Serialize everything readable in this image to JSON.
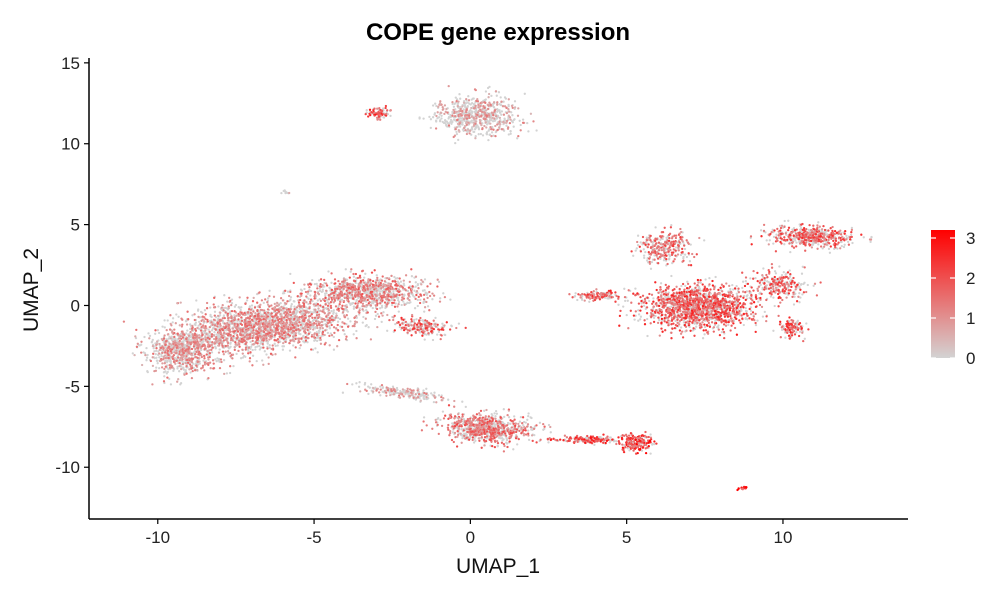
{
  "chart_data": {
    "type": "scatter",
    "title": "COPE gene expression",
    "xlabel": "UMAP_1",
    "ylabel": "UMAP_2",
    "xlim": [
      -12.2,
      14.0
    ],
    "ylim": [
      -13.2,
      15.3
    ],
    "xticks": [
      -10,
      -5,
      0,
      5,
      10
    ],
    "xtick_labels": [
      "-10",
      "-5",
      "0",
      "5",
      "10"
    ],
    "yticks": [
      -10,
      -5,
      0,
      5,
      10,
      15
    ],
    "ytick_labels": [
      "-10",
      "-5",
      "0",
      "5",
      "10",
      "15"
    ],
    "grid": false,
    "legend_position": "right",
    "color_scale": {
      "low_color": "#d3d3d3",
      "high_color": "#ff0000",
      "min": 0,
      "max": 3.2,
      "ticks": [
        0,
        1,
        2,
        3
      ],
      "tick_labels": [
        "0",
        "1",
        "2",
        "3"
      ]
    },
    "clusters": [
      {
        "id": "c-left-main",
        "center": [
          -6.6,
          -1.3
        ],
        "spread": [
          2.6,
          1.4
        ],
        "tilt": 0.32,
        "n": 2200,
        "mean_expr": 0.9
      },
      {
        "id": "c-left-upper",
        "center": [
          -3.2,
          0.8
        ],
        "spread": [
          1.6,
          0.9
        ],
        "tilt": 0.0,
        "n": 900,
        "mean_expr": 1.0
      },
      {
        "id": "c-left-far",
        "center": [
          -9.2,
          -2.8
        ],
        "spread": [
          1.0,
          1.3
        ],
        "tilt": 0.0,
        "n": 700,
        "mean_expr": 0.8
      },
      {
        "id": "c-left-tail",
        "center": [
          -1.6,
          -1.3
        ],
        "spread": [
          0.9,
          0.5
        ],
        "tilt": -0.2,
        "n": 200,
        "mean_expr": 1.3
      },
      {
        "id": "c-top",
        "center": [
          0.2,
          11.8
        ],
        "spread": [
          1.2,
          1.1
        ],
        "tilt": 0.0,
        "n": 650,
        "mean_expr": 0.7
      },
      {
        "id": "c-top-small",
        "center": [
          -2.9,
          11.9
        ],
        "spread": [
          0.35,
          0.3
        ],
        "tilt": 0.0,
        "n": 80,
        "mean_expr": 1.5
      },
      {
        "id": "c-tiny",
        "center": [
          -5.9,
          7.0
        ],
        "spread": [
          0.1,
          0.1
        ],
        "tilt": 0.0,
        "n": 10,
        "mean_expr": 0.4
      },
      {
        "id": "c-right-main",
        "center": [
          7.3,
          -0.1
        ],
        "spread": [
          1.6,
          1.2
        ],
        "tilt": 0.0,
        "n": 1500,
        "mean_expr": 1.4
      },
      {
        "id": "c-right-upper",
        "center": [
          6.2,
          3.6
        ],
        "spread": [
          0.8,
          0.9
        ],
        "tilt": 0.0,
        "n": 300,
        "mean_expr": 1.2
      },
      {
        "id": "c-right-arm",
        "center": [
          10.9,
          4.2
        ],
        "spread": [
          1.2,
          0.6
        ],
        "tilt": -0.1,
        "n": 500,
        "mean_expr": 1.3
      },
      {
        "id": "c-right-stem",
        "center": [
          9.9,
          1.3
        ],
        "spread": [
          0.8,
          0.8
        ],
        "tilt": 0.6,
        "n": 250,
        "mean_expr": 1.3
      },
      {
        "id": "c-right-bottom",
        "center": [
          10.3,
          -1.4
        ],
        "spread": [
          0.4,
          0.5
        ],
        "tilt": 0.0,
        "n": 120,
        "mean_expr": 1.4
      },
      {
        "id": "c-right-left-arm",
        "center": [
          4.2,
          0.6
        ],
        "spread": [
          0.8,
          0.25
        ],
        "tilt": 0.0,
        "n": 120,
        "mean_expr": 1.4
      },
      {
        "id": "c-bottom",
        "center": [
          0.5,
          -7.6
        ],
        "spread": [
          1.3,
          0.8
        ],
        "tilt": -0.2,
        "n": 800,
        "mean_expr": 1.1
      },
      {
        "id": "c-bottom-left-tail",
        "center": [
          -2.1,
          -5.4
        ],
        "spread": [
          1.2,
          0.3
        ],
        "tilt": -0.25,
        "n": 200,
        "mean_expr": 0.7
      },
      {
        "id": "c-bottom-right-tail",
        "center": [
          3.8,
          -8.3
        ],
        "spread": [
          1.2,
          0.2
        ],
        "tilt": 0.0,
        "n": 180,
        "mean_expr": 1.5
      },
      {
        "id": "c-bottom-far",
        "center": [
          5.3,
          -8.5
        ],
        "spread": [
          0.5,
          0.5
        ],
        "tilt": 0.5,
        "n": 180,
        "mean_expr": 1.6
      },
      {
        "id": "c-isolated",
        "center": [
          8.7,
          -11.3
        ],
        "spread": [
          0.15,
          0.07
        ],
        "tilt": 0.3,
        "n": 15,
        "mean_expr": 2.0
      }
    ]
  }
}
